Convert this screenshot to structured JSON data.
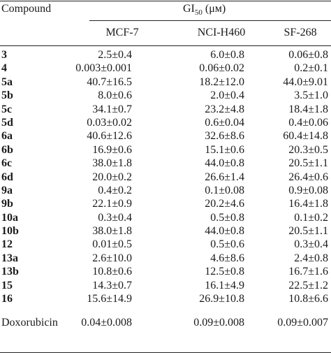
{
  "header": {
    "compound": "Compound",
    "gi_main": "GI",
    "gi_sub": "50",
    "gi_unit": " (μм)",
    "columns": [
      "MCF-7",
      "NCI-H460",
      "SF-268"
    ]
  },
  "rows": [
    {
      "name": "3",
      "values": [
        "2.5±0.4",
        "6.0±0.8",
        "0.06±0.8"
      ]
    },
    {
      "name": "4",
      "values": [
        "0.003±0.001",
        "0.06±0.02",
        "0.2±0.1"
      ]
    },
    {
      "name": "5a",
      "values": [
        "40.7±16.5",
        "18.2±12.0",
        "44.0±9.01"
      ]
    },
    {
      "name": "5b",
      "values": [
        "8.0±0.6",
        "2.0±0.4",
        "3.5±1.0"
      ]
    },
    {
      "name": "5c",
      "values": [
        "34.1±0.7",
        "23.2±4.8",
        "18.4±1.8"
      ]
    },
    {
      "name": "5d",
      "values": [
        "0.03±0.02",
        "0.6±0.04",
        "0.4±0.06"
      ]
    },
    {
      "name": "6a",
      "values": [
        "40.6±12.6",
        "32.6±8.6",
        "60.4±14.8"
      ]
    },
    {
      "name": "6b",
      "values": [
        "16.9±0.6",
        "15.1±0.6",
        "20.3±0.5"
      ]
    },
    {
      "name": "6c",
      "values": [
        "38.0±1.8",
        "44.0±0.8",
        "20.5±1.1"
      ]
    },
    {
      "name": "6d",
      "values": [
        "20.0±0.2",
        "26.6±1.4",
        "26.4±0.6"
      ]
    },
    {
      "name": "9a",
      "values": [
        "0.4±0.2",
        "0.1±0.08",
        "0.9±0.08"
      ]
    },
    {
      "name": "9b",
      "values": [
        "22.1±0.9",
        "20.2±4.6",
        "16.4±1.8"
      ]
    },
    {
      "name": "10a",
      "values": [
        "0.3±0.4",
        "0.5±0.8",
        "0.1±0.2"
      ]
    },
    {
      "name": "10b",
      "values": [
        "38.0±1.8",
        "44.0±0.8",
        "20.5±1.1"
      ]
    },
    {
      "name": "12",
      "values": [
        "0.01±0.5",
        "0.5±0.6",
        "0.3±0.4"
      ]
    },
    {
      "name": "13a",
      "values": [
        "2.6±10.0",
        "4.6±8.6",
        "2.4±0.8"
      ]
    },
    {
      "name": "13b",
      "values": [
        "10.8±0.6",
        "12.5±0.8",
        "16.7±1.6"
      ]
    },
    {
      "name": "15",
      "values": [
        "14.3±0.7",
        "16.1±4.9",
        "22.5±1.2"
      ]
    },
    {
      "name": "16",
      "values": [
        "15.6±14.9",
        "26.9±10.8",
        "10.8±6.6"
      ]
    }
  ],
  "reference": {
    "name": "Doxorubicin",
    "values": [
      "0.04±0.008",
      "0.09±0.008",
      "0.09±0.007"
    ]
  }
}
